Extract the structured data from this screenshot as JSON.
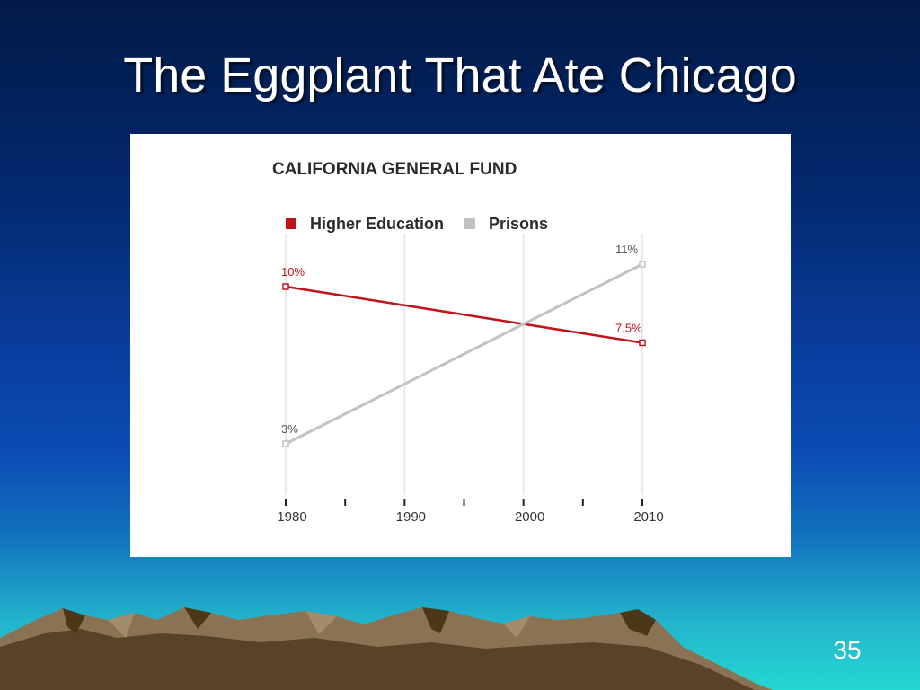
{
  "slide": {
    "title": "The Eggplant That Ate Chicago",
    "number": "35"
  },
  "chart_data": {
    "type": "line",
    "title": "CALIFORNIA GENERAL FUND",
    "x": [
      1980,
      2010
    ],
    "xlim": [
      1980,
      2010
    ],
    "ylim": [
      0,
      12
    ],
    "x_ticks": [
      1980,
      1990,
      2000,
      2010
    ],
    "x_minor_ticks": [
      1985,
      1995,
      2005
    ],
    "grid": true,
    "legend": "top-left",
    "series": [
      {
        "name": "Higher Education",
        "color": "#c0141c",
        "values": [
          10,
          7.5
        ],
        "labels": [
          "10%",
          "7.5%"
        ]
      },
      {
        "name": "Prisons",
        "color": "#c2c2c2",
        "values": [
          3,
          11
        ],
        "labels": [
          "3%",
          "11%"
        ]
      }
    ]
  }
}
